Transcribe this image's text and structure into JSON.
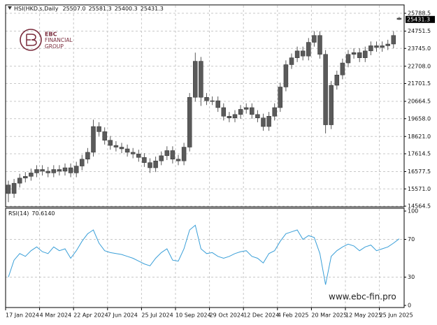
{
  "logo": {
    "brand": "EBC",
    "line1": "FINANCIAL",
    "line2": "GROUP"
  },
  "watermark": "www.ebc-fin.pro",
  "chart_data": [
    {
      "type": "candlestick",
      "grid": true,
      "header_labels": [
        "25507.0",
        "25581.3",
        "25400.3",
        "25431.3"
      ],
      "series": [
        {
          "name": "HSI(HKD.s,Daily",
          "color": "#5a5a5a",
          "open": [
            15800,
            15300,
            15900,
            16200,
            16300,
            16500,
            16700,
            16600,
            16500,
            16700,
            16600,
            16800,
            16500,
            16900,
            17300,
            17700,
            19200,
            18900,
            18400,
            18100,
            18000,
            17900,
            17700,
            17600,
            17400,
            17100,
            16800,
            17200,
            17500,
            17800,
            17300,
            17200,
            18000,
            20900,
            23000,
            20900,
            20700,
            20700,
            20300,
            19800,
            19700,
            19900,
            20200,
            20300,
            19900,
            19700,
            19200,
            19800,
            20300,
            21500,
            22800,
            23200,
            23600,
            23300,
            24100,
            24500,
            23400,
            19300,
            21600,
            22200,
            22900,
            23400,
            23500,
            23200,
            23600,
            23900,
            23800,
            23900,
            24000,
            25507
          ],
          "high": [
            16050,
            16150,
            16450,
            16550,
            16750,
            16950,
            16950,
            16850,
            16950,
            16950,
            17050,
            17050,
            17150,
            17550,
            17950,
            19600,
            19450,
            19150,
            18650,
            18350,
            18250,
            18150,
            17950,
            17850,
            17650,
            17350,
            17450,
            17750,
            18050,
            18050,
            17550,
            18250,
            21150,
            23500,
            23250,
            21150,
            20950,
            20950,
            20550,
            20050,
            20150,
            20450,
            20550,
            20550,
            20150,
            19950,
            20050,
            20550,
            21750,
            23050,
            23450,
            23850,
            23850,
            24350,
            24750,
            24750,
            23650,
            21850,
            22450,
            23150,
            23650,
            23750,
            23750,
            23850,
            24150,
            24150,
            24150,
            24250,
            24750,
            25581.3
          ],
          "low": [
            14800,
            15050,
            15650,
            15950,
            16050,
            16250,
            16350,
            16250,
            16250,
            16350,
            16350,
            16250,
            16250,
            16650,
            17050,
            17450,
            18650,
            18150,
            17850,
            17750,
            17650,
            17450,
            17350,
            17150,
            16850,
            16500,
            16550,
            16950,
            17250,
            17050,
            16950,
            16950,
            17750,
            20650,
            20400,
            20450,
            20450,
            20050,
            19550,
            19450,
            19450,
            19650,
            19950,
            19650,
            19450,
            18950,
            18950,
            19550,
            20050,
            21250,
            22550,
            22950,
            23050,
            23050,
            23850,
            23150,
            18800,
            19050,
            21350,
            21950,
            22650,
            23150,
            22950,
            22950,
            23350,
            23550,
            23550,
            23650,
            23750,
            25400.3
          ],
          "close": [
            15300,
            15900,
            16200,
            16300,
            16500,
            16700,
            16600,
            16500,
            16700,
            16600,
            16800,
            16500,
            16900,
            17300,
            17700,
            19200,
            18900,
            18400,
            18100,
            18000,
            17900,
            17700,
            17600,
            17400,
            17100,
            16800,
            17200,
            17500,
            17800,
            17300,
            17200,
            18000,
            20900,
            23000,
            20900,
            20700,
            20700,
            20300,
            19800,
            19700,
            19900,
            20200,
            20300,
            19900,
            19700,
            19200,
            19800,
            20300,
            21500,
            22800,
            23200,
            23600,
            23300,
            24100,
            24500,
            23400,
            19300,
            21600,
            22200,
            22900,
            23400,
            23500,
            23200,
            23600,
            23900,
            23800,
            23900,
            24000,
            24500,
            25431.3
          ]
        }
      ],
      "ylim": [
        14564.5,
        26278
      ],
      "yticks": [
        25788.5,
        24751.5,
        {
          "value": 23745,
          "label": "23745.0"
        },
        {
          "value": 22708,
          "label": "22708.0"
        },
        21701.5,
        20664.5,
        {
          "value": 19658,
          "label": "19658.0"
        },
        {
          "value": 18621,
          "label": "18621.0"
        },
        17614.5,
        16577.5,
        {
          "value": 15571,
          "label": "15571.0"
        },
        14564.5
      ],
      "xticks": [
        {
          "value": 0,
          "label": "17 Jan 2024"
        },
        {
          "value": 6,
          "label": "4 Mar 2024"
        },
        {
          "value": 12,
          "label": "22 Apr 2024"
        },
        {
          "value": 18,
          "label": "7 Jun 2024"
        },
        {
          "value": 24,
          "label": "25 Jul 2024"
        },
        {
          "value": 30,
          "label": "10 Sep 2024"
        },
        {
          "value": 36,
          "label": "29 Oct 2024"
        },
        {
          "value": 42,
          "label": "12 Dec 2024"
        },
        {
          "value": 48,
          "label": "4 Feb 2025"
        },
        {
          "value": 54,
          "label": "20 Mar 2025"
        },
        {
          "value": 60,
          "label": "12 May 2025"
        },
        {
          "value": 66,
          "label": "25 Jun 2025"
        }
      ]
    },
    {
      "type": "line",
      "grid": true,
      "series": [
        {
          "name": "RSI(14)",
          "color": "#3a9fd8",
          "values": [
            30,
            48,
            55,
            52,
            58,
            62,
            57,
            55,
            62,
            58,
            60,
            50,
            58,
            68,
            76,
            80,
            66,
            58,
            56,
            55,
            54,
            52,
            50,
            47,
            44,
            42,
            50,
            56,
            60,
            48,
            47,
            60,
            80,
            85,
            60,
            55,
            56,
            52,
            50,
            52,
            55,
            57,
            58,
            52,
            50,
            45,
            55,
            58,
            68,
            76,
            78,
            80,
            70,
            74,
            72,
            55,
            22,
            52,
            58,
            62,
            65,
            63,
            58,
            62,
            64,
            58,
            60,
            62,
            66,
            70.614
          ],
          "value_labels": [
            null,
            null,
            null,
            null,
            null,
            null,
            null,
            null,
            null,
            null,
            null,
            null,
            null,
            null,
            null,
            null,
            null,
            null,
            null,
            null,
            null,
            null,
            null,
            null,
            null,
            null,
            null,
            null,
            null,
            null,
            null,
            null,
            null,
            null,
            null,
            null,
            null,
            null,
            null,
            null,
            null,
            null,
            null,
            null,
            null,
            null,
            null,
            null,
            null,
            null,
            null,
            null,
            null,
            null,
            null,
            null,
            null,
            null,
            null,
            null,
            null,
            null,
            null,
            null,
            null,
            null,
            null,
            null,
            null,
            "70.6140"
          ]
        }
      ],
      "ylim": [
        0,
        100
      ],
      "yticks": [
        0,
        30,
        70,
        100
      ]
    }
  ]
}
